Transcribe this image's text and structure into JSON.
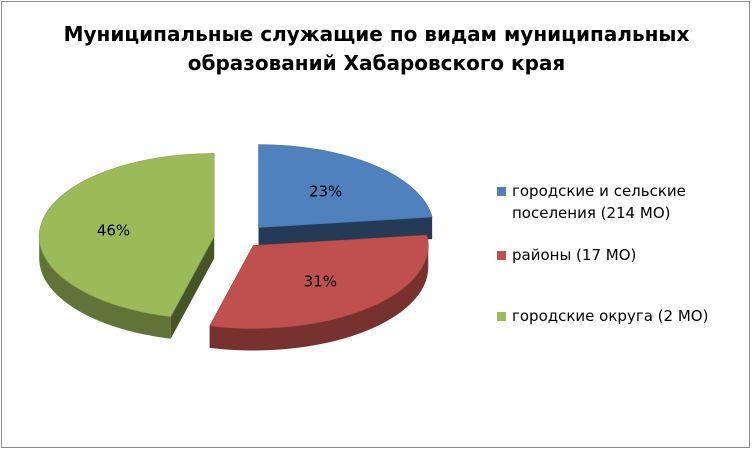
{
  "chart_data": {
    "type": "pie",
    "title": "Муниципальные служащие по видам муниципальных образований Хабаровского края",
    "title_lines": [
      "Муниципальные служащие по видам муниципальных",
      "образований Хабаровского края"
    ],
    "categories": [
      "городские и сельские поселения  (214 МО)",
      "районы (17 МО)",
      "городские округа (2 МО)"
    ],
    "values": [
      23,
      31,
      46
    ],
    "data_labels": [
      "23%",
      "31%",
      "46%"
    ],
    "colors": [
      "#4f81bd",
      "#c0504d",
      "#9bbb59"
    ],
    "exploded": true,
    "legend_position": "right"
  },
  "legend": {
    "items": [
      {
        "lines": [
          "городские и сельские",
          "поселения  (214 МО)"
        ],
        "color": "#4f81bd"
      },
      {
        "lines": [
          "районы (17 МО)"
        ],
        "color": "#c0504d"
      },
      {
        "lines": [
          "городские округа (2 МО)"
        ],
        "color": "#9bbb59"
      }
    ]
  }
}
